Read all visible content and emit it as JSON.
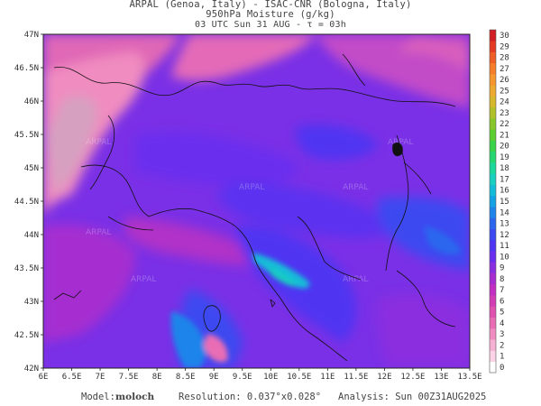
{
  "header": {
    "line1": "ARPAL (Genoa, Italy)  -  ISAC-CNR (Bologna, Italy)",
    "line2": "950hPa Moisture (g/kg)",
    "line3": "03 UTC Sun 31 AUG  -  τ = 03h"
  },
  "map": {
    "lon_ticks": [
      "6E",
      "6.5E",
      "7E",
      "7.5E",
      "8E",
      "8.5E",
      "9E",
      "9.5E",
      "10E",
      "10.5E",
      "11E",
      "11.5E",
      "12E",
      "12.5E",
      "13E",
      "13.5E"
    ],
    "lat_ticks": [
      "47N",
      "46.5N",
      "46N",
      "45.5N",
      "45N",
      "44.5N",
      "44N",
      "43.5N",
      "43N",
      "42.5N",
      "42N"
    ],
    "watermark": "ARPAL"
  },
  "colorbar": {
    "labels": [
      "0",
      "1",
      "2",
      "3",
      "4",
      "5",
      "6",
      "7",
      "8",
      "9",
      "10",
      "11",
      "12",
      "13",
      "14",
      "15",
      "16",
      "17",
      "18",
      "19",
      "20",
      "21",
      "22",
      "23",
      "24",
      "25",
      "26",
      "27",
      "28",
      "29",
      "30"
    ],
    "colors": [
      "#ffffff",
      "#fbd2e6",
      "#f6b0d2",
      "#f08cc0",
      "#e96db4",
      "#e052b0",
      "#d23cb4",
      "#c22ec2",
      "#a62ed0",
      "#8a2fe0",
      "#6a2fee",
      "#4f34f2",
      "#3c48f0",
      "#2c66ee",
      "#1e84ea",
      "#14a2e4",
      "#14bcd8",
      "#18cfc0",
      "#1ed79a",
      "#28d670",
      "#3ad24a",
      "#5ccd30",
      "#86c62a",
      "#b0c02a",
      "#d6b82c",
      "#ecaa30",
      "#f5962e",
      "#f67d2a",
      "#ef5e26",
      "#e43a24",
      "#d01e22"
    ]
  },
  "footer": {
    "model_label": "Model:",
    "model_value": "moloch",
    "resolution": "Resolution: 0.037°x0.028°",
    "analysis": "Analysis: Sun 00Z31AUG2025"
  }
}
